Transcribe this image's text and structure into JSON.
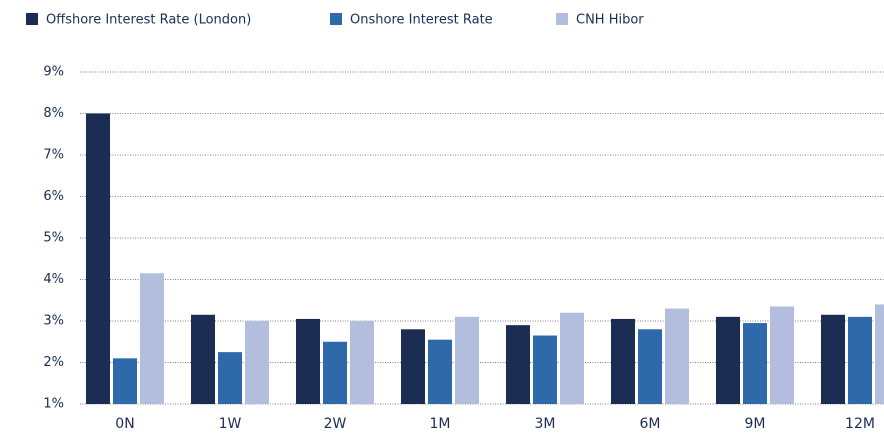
{
  "chart_data": {
    "type": "bar",
    "categories": [
      "0N",
      "1W",
      "2W",
      "1M",
      "3M",
      "6M",
      "9M",
      "12M"
    ],
    "series": [
      {
        "name": "Offshore Interest Rate (London)",
        "color": "#1b2d53",
        "values": [
          8.0,
          3.15,
          3.05,
          2.8,
          2.9,
          3.05,
          3.1,
          3.15
        ]
      },
      {
        "name": "Onshore Interest Rate",
        "color": "#2e69a9",
        "values": [
          2.1,
          2.25,
          2.5,
          2.55,
          2.65,
          2.8,
          2.95,
          3.1
        ]
      },
      {
        "name": "CNH Hibor",
        "color": "#b3bedf",
        "values": [
          4.15,
          3.0,
          3.0,
          3.1,
          3.2,
          3.3,
          3.35,
          3.4
        ]
      }
    ],
    "ylim": [
      1,
      9
    ],
    "yticks": [
      {
        "value": 1,
        "label": "1%"
      },
      {
        "value": 2,
        "label": "2%"
      },
      {
        "value": 3,
        "label": "3%"
      },
      {
        "value": 4,
        "label": "4%"
      },
      {
        "value": 5,
        "label": "5%"
      },
      {
        "value": 6,
        "label": "6%"
      },
      {
        "value": 7,
        "label": "7%"
      },
      {
        "value": 8,
        "label": "8%"
      },
      {
        "value": 9,
        "label": "9%"
      }
    ],
    "grid": true,
    "legend": "top"
  }
}
